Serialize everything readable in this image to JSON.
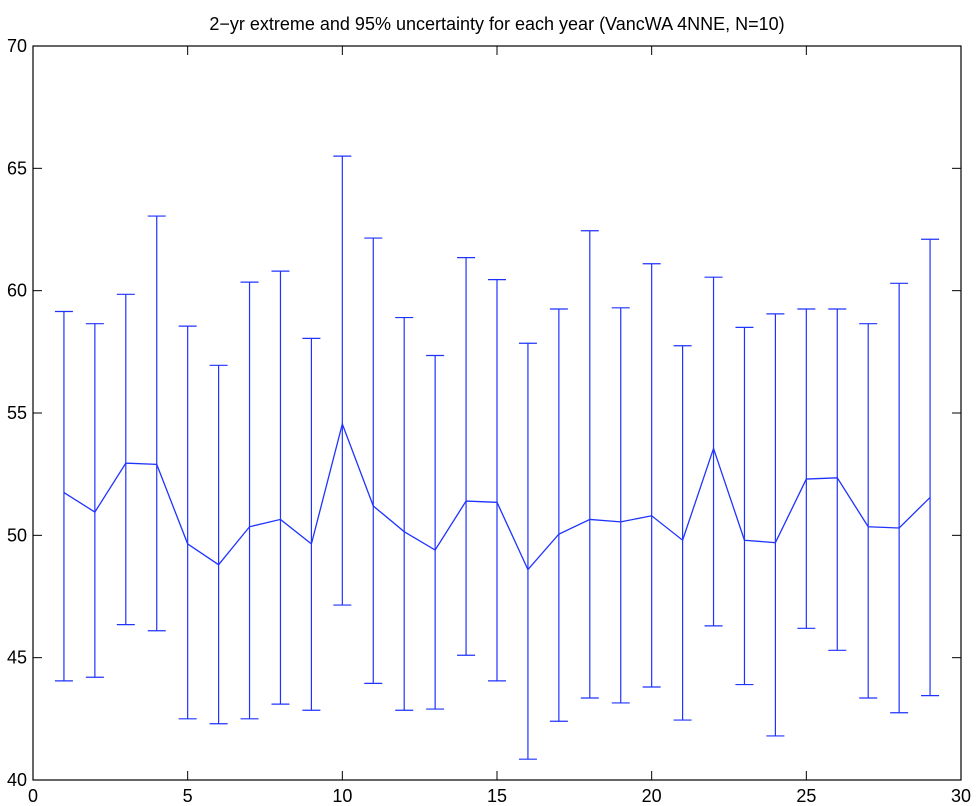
{
  "chart_data": {
    "type": "line",
    "title": "2−yr extreme and 95% uncertainty for each year (VancWA 4NNE, N=10)",
    "xlabel": "",
    "ylabel": "",
    "xlim": [
      0,
      30
    ],
    "ylim": [
      40,
      70
    ],
    "xticks": [
      0,
      5,
      10,
      15,
      20,
      25,
      30
    ],
    "yticks": [
      40,
      45,
      50,
      55,
      60,
      65,
      70
    ],
    "xtick_labels": [
      "0",
      "5",
      "10",
      "15",
      "20",
      "25",
      "30"
    ],
    "ytick_labels": [
      "40",
      "45",
      "50",
      "55",
      "60",
      "65",
      "70"
    ],
    "grid": false,
    "series": [
      {
        "color": "#1f33ff",
        "error_bars": true,
        "x": [
          1,
          2,
          3,
          4,
          5,
          6,
          7,
          8,
          9,
          10,
          11,
          12,
          13,
          14,
          15,
          16,
          17,
          18,
          19,
          20,
          21,
          22,
          23,
          24,
          25,
          26,
          27,
          28,
          29
        ],
        "y": [
          51.75,
          50.95,
          52.95,
          52.9,
          49.65,
          48.8,
          50.35,
          50.65,
          49.65,
          54.55,
          51.2,
          50.15,
          49.4,
          51.4,
          51.35,
          48.6,
          50.05,
          50.65,
          50.55,
          50.8,
          49.8,
          53.55,
          49.8,
          49.7,
          52.3,
          52.35,
          50.35,
          50.3,
          51.55
        ],
        "lower": [
          44.05,
          44.2,
          46.35,
          46.1,
          42.5,
          42.3,
          42.5,
          43.1,
          42.85,
          47.15,
          43.95,
          42.85,
          42.9,
          45.1,
          44.05,
          40.85,
          42.4,
          43.35,
          43.15,
          43.8,
          42.45,
          46.3,
          43.9,
          41.8,
          46.2,
          45.3,
          43.35,
          42.75,
          43.45
        ],
        "upper": [
          59.15,
          58.65,
          59.85,
          63.05,
          58.55,
          56.95,
          60.35,
          60.8,
          58.05,
          65.5,
          62.15,
          58.9,
          57.35,
          61.35,
          60.45,
          57.85,
          59.25,
          62.45,
          59.3,
          61.1,
          57.75,
          60.55,
          58.5,
          59.05,
          59.25,
          59.25,
          58.65,
          60.3,
          62.1
        ]
      }
    ]
  }
}
